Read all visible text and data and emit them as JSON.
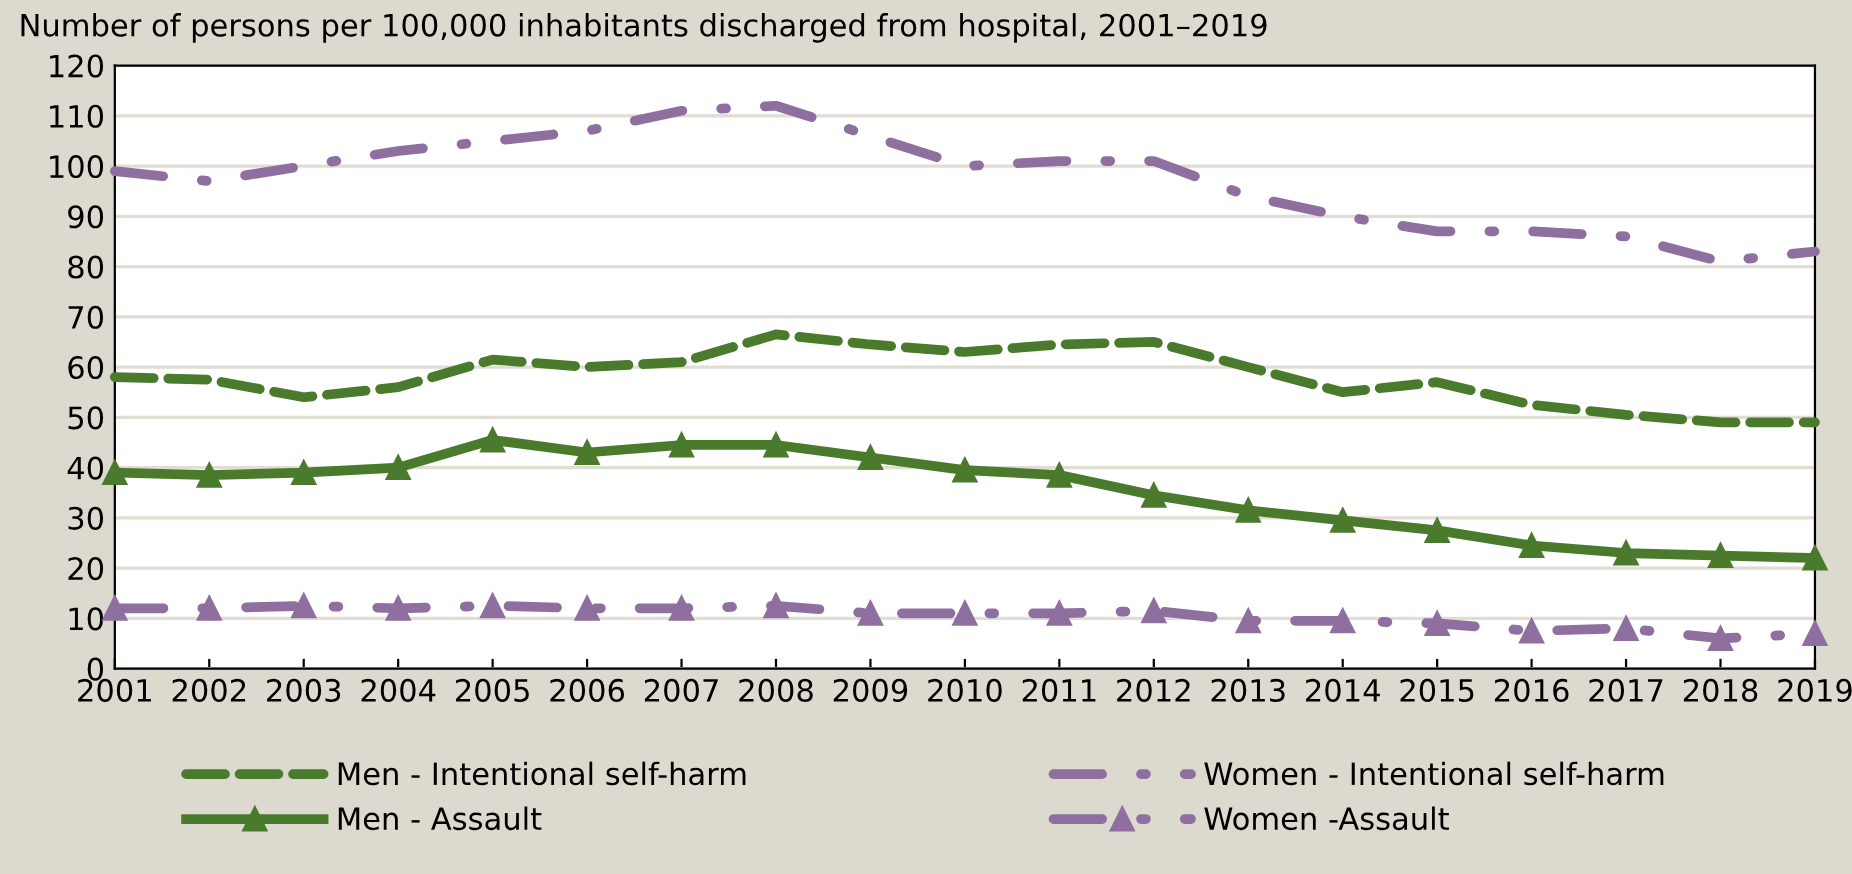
{
  "chart_data": {
    "type": "line",
    "title": "Number of persons per 100,000 inhabitants discharged from hospital, 2001–2019",
    "x": [
      2001,
      2002,
      2003,
      2004,
      2005,
      2006,
      2007,
      2008,
      2009,
      2010,
      2011,
      2012,
      2013,
      2014,
      2015,
      2016,
      2017,
      2018,
      2019
    ],
    "series": [
      {
        "name": "Men - Intentional self-harm",
        "color": "#4a7a2c",
        "line_style": "dashed",
        "marker": "none",
        "values": [
          58,
          57.5,
          54,
          56,
          61.5,
          60,
          61,
          66.5,
          64.5,
          63,
          64.5,
          65,
          60,
          55,
          57,
          52.5,
          50.5,
          49,
          49
        ]
      },
      {
        "name": "Women - Intentional self-harm",
        "color": "#8e6fa0",
        "line_style": "dashdot",
        "marker": "none",
        "values": [
          99,
          97,
          100,
          103,
          105,
          107,
          111,
          112,
          106,
          100,
          101,
          101,
          94,
          90,
          87,
          87,
          86,
          81,
          83
        ]
      },
      {
        "name": "Men - Assault",
        "color": "#4a7a2c",
        "line_style": "solid",
        "marker": "triangle",
        "values": [
          39,
          38.5,
          39,
          40,
          45.5,
          43,
          44.5,
          44.5,
          42,
          39.5,
          38.5,
          34.5,
          31.5,
          29.5,
          27.5,
          24.5,
          23,
          22.5,
          22
        ]
      },
      {
        "name": "Women -Assault",
        "color": "#8e6fa0",
        "line_style": "dashdot",
        "marker": "triangle",
        "values": [
          12,
          12,
          12.5,
          12,
          12.5,
          12,
          12,
          12.5,
          11,
          11,
          11,
          11.5,
          9.5,
          9.5,
          9,
          7.5,
          8,
          6,
          7
        ]
      }
    ],
    "xlim": [
      2001,
      2019
    ],
    "xticks": [
      2001,
      2002,
      2003,
      2004,
      2005,
      2006,
      2007,
      2008,
      2009,
      2010,
      2011,
      2012,
      2013,
      2014,
      2015,
      2016,
      2017,
      2018,
      2019
    ],
    "ylim": [
      0,
      120
    ],
    "yticks": [
      0,
      10,
      20,
      30,
      40,
      50,
      60,
      70,
      80,
      90,
      100,
      110,
      120
    ],
    "grid": "y",
    "legend": "bottom"
  }
}
